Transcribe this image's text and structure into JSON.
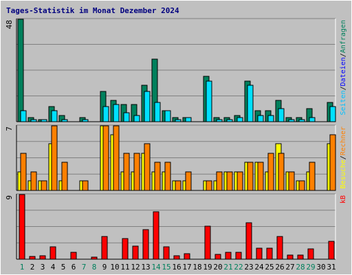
{
  "title": "Tages-Statistik im Monat Dezember 2024",
  "colors": {
    "background": "#c0c0c0",
    "plot_background": "#c0c0c0",
    "grid": "#808080",
    "hits": "#00805c",
    "files": "#00e0ff",
    "pages": "#00c0ff",
    "visits": "#ffff00",
    "sites": "#ff8000",
    "kbytes": "#ff0000",
    "weekend_label": "#00805c",
    "weekday_label": "#000000"
  },
  "chart_data": [
    {
      "type": "bar",
      "panel": "top",
      "ymax_label": "48",
      "ylim": [
        0,
        48
      ],
      "grid": true,
      "legend": [
        {
          "text": "Anfragen",
          "color": "#00805c"
        },
        {
          "text": "Dateien",
          "color": "#0000ff"
        },
        {
          "text": "Seiten",
          "color": "#00c0ff"
        }
      ],
      "legend_separator": "/",
      "categories": [
        1,
        2,
        3,
        4,
        5,
        6,
        7,
        8,
        9,
        10,
        11,
        12,
        13,
        14,
        15,
        16,
        17,
        18,
        19,
        20,
        21,
        22,
        23,
        24,
        25,
        26,
        27,
        28,
        29,
        30,
        31
      ],
      "series": [
        {
          "name": "Anfragen",
          "values": [
            48,
            2,
            1,
            7,
            3,
            0,
            2,
            0,
            14,
            10,
            8,
            8,
            17,
            29,
            5,
            2,
            2,
            0,
            21,
            2,
            2,
            3,
            19,
            5,
            5,
            10,
            2,
            2,
            6,
            0,
            9
          ]
        },
        {
          "name": "Seiten",
          "values": [
            5,
            1,
            1,
            5,
            1,
            0,
            1,
            0,
            7,
            8,
            4,
            3,
            14,
            9,
            5,
            1,
            2,
            0,
            19,
            1,
            1,
            2,
            17,
            3,
            3,
            6,
            1,
            1,
            2,
            0,
            7
          ]
        }
      ]
    },
    {
      "type": "bar",
      "panel": "middle",
      "ymax_label": "7",
      "ylim": [
        0,
        7
      ],
      "grid": true,
      "legend": [
        {
          "text": "Rechner",
          "color": "#ff8000"
        },
        {
          "text": "Besuche",
          "color": "#ffff00"
        }
      ],
      "legend_separator": "/",
      "categories": [
        1,
        2,
        3,
        4,
        5,
        6,
        7,
        8,
        9,
        10,
        11,
        12,
        13,
        14,
        15,
        16,
        17,
        18,
        19,
        20,
        21,
        22,
        23,
        24,
        25,
        26,
        27,
        28,
        29,
        30,
        31
      ],
      "series": [
        {
          "name": "Besuche",
          "values": [
            2,
            1,
            1,
            5,
            1,
            0,
            1,
            0,
            7,
            6,
            2,
            2,
            4,
            2,
            2,
            1,
            1,
            0,
            1,
            1,
            2,
            2,
            3,
            3,
            2,
            5,
            2,
            1,
            2,
            0,
            5
          ]
        },
        {
          "name": "Rechner",
          "values": [
            4,
            2,
            1,
            7,
            3,
            0,
            1,
            0,
            7,
            7,
            4,
            4,
            5,
            3,
            3,
            1,
            2,
            0,
            1,
            2,
            2,
            2,
            3,
            3,
            4,
            4,
            2,
            1,
            3,
            0,
            6
          ]
        }
      ]
    },
    {
      "type": "bar",
      "panel": "bottom",
      "ymax_label": "9",
      "ylim": [
        0,
        9
      ],
      "grid": true,
      "legend": [
        {
          "text": "kB",
          "color": "#ff0000"
        }
      ],
      "categories": [
        1,
        2,
        3,
        4,
        5,
        6,
        7,
        8,
        9,
        10,
        11,
        12,
        13,
        14,
        15,
        16,
        17,
        18,
        19,
        20,
        21,
        22,
        23,
        24,
        25,
        26,
        27,
        28,
        29,
        30,
        31
      ],
      "series": [
        {
          "name": "kB",
          "values": [
            9.2,
            0.4,
            0.5,
            1.7,
            0,
            0.9,
            0,
            0.3,
            3.1,
            0,
            2.8,
            1.8,
            4.1,
            6.5,
            1.7,
            0.5,
            0.8,
            0,
            4.5,
            0.7,
            0.9,
            0.9,
            5.0,
            1.5,
            1.5,
            3.1,
            0.6,
            0.6,
            1.4,
            0,
            2.5
          ]
        }
      ]
    }
  ],
  "x_labels": {
    "days": [
      "1",
      "2",
      "3",
      "4",
      "5",
      "6",
      "7",
      "8",
      "9",
      "10",
      "11",
      "12",
      "13",
      "14",
      "15",
      "16",
      "17",
      "18",
      "19",
      "20",
      "21",
      "22",
      "23",
      "24",
      "25",
      "26",
      "27",
      "28",
      "29",
      "30",
      "31"
    ],
    "weekend_days": [
      1,
      7,
      8,
      14,
      15,
      21,
      22,
      28,
      29
    ]
  }
}
